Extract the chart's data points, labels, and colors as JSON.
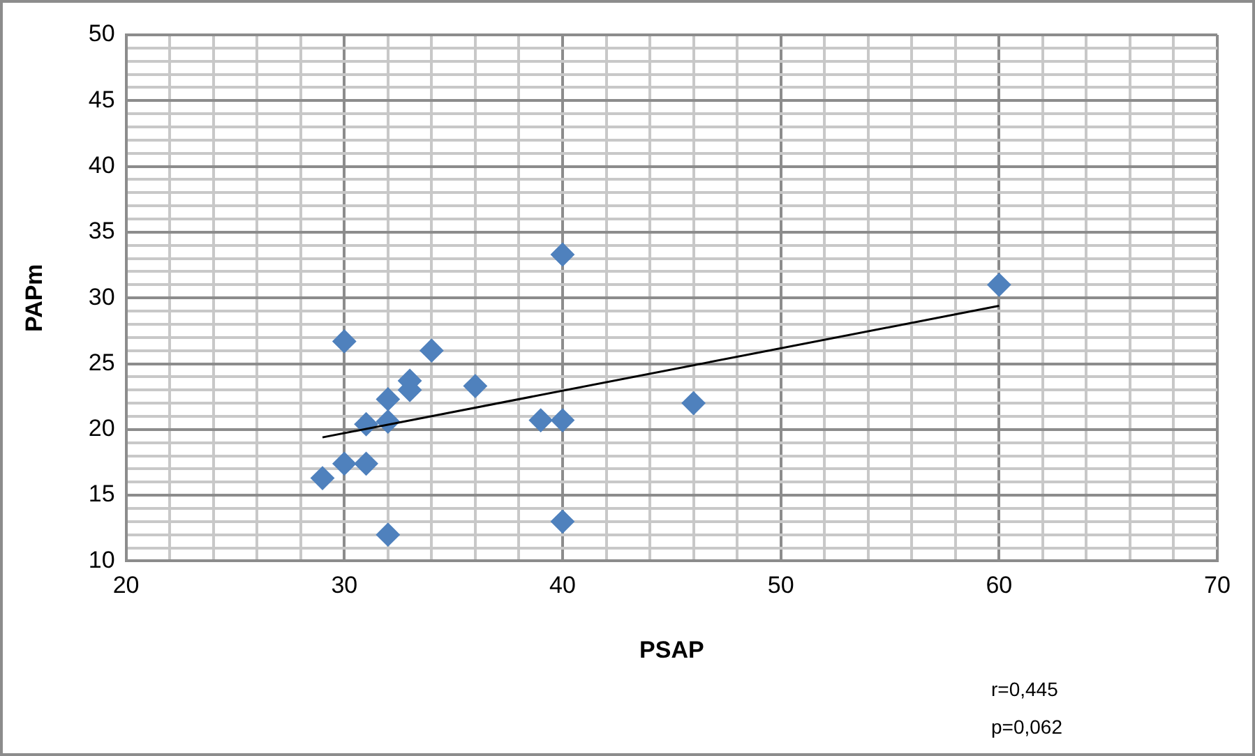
{
  "chart_data": {
    "type": "scatter",
    "xlabel": "PSAP",
    "ylabel": "PAPm",
    "marker": "diamond",
    "grid": true,
    "legend": false,
    "xlim": [
      20,
      70
    ],
    "ylim": [
      10,
      50
    ],
    "xticks": [
      20,
      {
        "value": 22,
        "label": null
      },
      {
        "value": 24,
        "label": null
      },
      {
        "value": 26,
        "label": null
      },
      {
        "value": 28,
        "label": null
      },
      30,
      {
        "value": 32,
        "label": null
      },
      {
        "value": 34,
        "label": null
      },
      {
        "value": 36,
        "label": null
      },
      {
        "value": 38,
        "label": null
      },
      40,
      {
        "value": 42,
        "label": null
      },
      {
        "value": 44,
        "label": null
      },
      {
        "value": 46,
        "label": null
      },
      {
        "value": 48,
        "label": null
      },
      50,
      {
        "value": 52,
        "label": null
      },
      {
        "value": 54,
        "label": null
      },
      {
        "value": 56,
        "label": null
      },
      {
        "value": 58,
        "label": null
      },
      60,
      {
        "value": 62,
        "label": null
      },
      {
        "value": 64,
        "label": null
      },
      {
        "value": 66,
        "label": null
      },
      {
        "value": 68,
        "label": null
      },
      70
    ],
    "yticks": [
      10,
      {
        "value": 11,
        "label": null
      },
      {
        "value": 12,
        "label": null
      },
      {
        "value": 13,
        "label": null
      },
      {
        "value": 14,
        "label": null
      },
      15,
      {
        "value": 16,
        "label": null
      },
      {
        "value": 17,
        "label": null
      },
      {
        "value": 18,
        "label": null
      },
      {
        "value": 19,
        "label": null
      },
      20,
      {
        "value": 21,
        "label": null
      },
      {
        "value": 22,
        "label": null
      },
      {
        "value": 23,
        "label": null
      },
      {
        "value": 24,
        "label": null
      },
      25,
      {
        "value": 26,
        "label": null
      },
      {
        "value": 27,
        "label": null
      },
      {
        "value": 28,
        "label": null
      },
      {
        "value": 29,
        "label": null
      },
      30,
      {
        "value": 31,
        "label": null
      },
      {
        "value": 32,
        "label": null
      },
      {
        "value": 33,
        "label": null
      },
      {
        "value": 34,
        "label": null
      },
      35,
      {
        "value": 36,
        "label": null
      },
      {
        "value": 37,
        "label": null
      },
      {
        "value": 38,
        "label": null
      },
      {
        "value": 39,
        "label": null
      },
      40,
      {
        "value": 41,
        "label": null
      },
      {
        "value": 42,
        "label": null
      },
      {
        "value": 43,
        "label": null
      },
      {
        "value": 44,
        "label": null
      },
      45,
      {
        "value": 46,
        "label": null
      },
      {
        "value": 47,
        "label": null
      },
      {
        "value": 48,
        "label": null
      },
      {
        "value": 49,
        "label": null
      },
      50
    ],
    "series": [
      {
        "type": "scatter",
        "color": "#4f81bd",
        "x": [
          29,
          30,
          30,
          31,
          31,
          32,
          32,
          32,
          33,
          33,
          34,
          36,
          39,
          40,
          40,
          40,
          46,
          60
        ],
        "values": [
          16.3,
          17.4,
          26.7,
          20.4,
          17.4,
          22.3,
          20.6,
          12,
          23.7,
          23,
          26,
          23.3,
          20.7,
          20.7,
          33.3,
          13,
          22,
          31
        ]
      },
      {
        "type": "line",
        "color": "#000000",
        "marker": "none",
        "x": [
          29,
          60
        ],
        "values": [
          19.4,
          29.4
        ]
      }
    ],
    "annotations": [
      "r=0,445",
      "p=0,062"
    ]
  }
}
